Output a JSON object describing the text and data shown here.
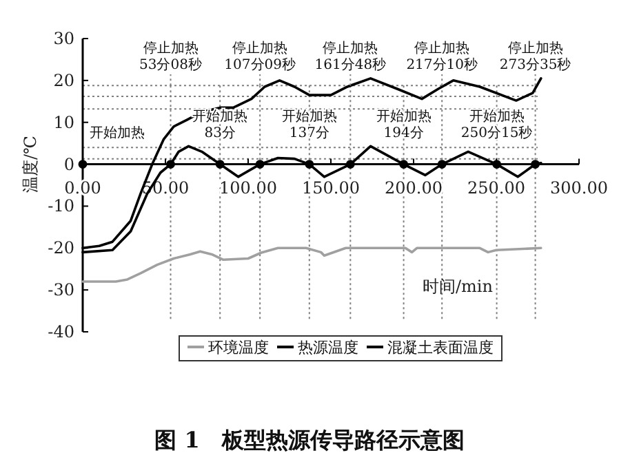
{
  "chart_data": {
    "type": "line",
    "title": "图 1　板型热源传导路径示意图",
    "xlabel": "时间/min",
    "ylabel": "温度/℃",
    "xlim": [
      0,
      300
    ],
    "ylim": [
      -40,
      30
    ],
    "xticks": [
      {
        "value": 0,
        "label": "0.00"
      },
      {
        "value": 50,
        "label": "50.00"
      },
      {
        "value": 100,
        "label": "100.00"
      },
      {
        "value": 150,
        "label": "150.00"
      },
      {
        "value": 200,
        "label": "200.00"
      },
      {
        "value": 250,
        "label": "250.00"
      },
      {
        "value": 300,
        "label": "300.00"
      }
    ],
    "yticks": [
      -40,
      -30,
      -20,
      -10,
      0,
      10,
      20,
      30
    ],
    "legend": "bottom",
    "series": [
      {
        "name": "环境温度",
        "color": "#a0a0a0",
        "x": [
          0,
          20,
          27,
          35,
          45,
          55,
          65,
          71,
          78,
          85,
          100,
          108,
          118,
          135,
          144,
          146,
          159,
          195,
          199,
          202,
          240,
          245,
          250,
          277
        ],
        "values": [
          -28,
          -28,
          -27.5,
          -26,
          -24,
          -22.5,
          -21.5,
          -20.8,
          -21.5,
          -22.8,
          -22.5,
          -21.1,
          -20,
          -20,
          -21,
          -21.8,
          -20,
          -20,
          -21,
          -20,
          -20,
          -21,
          -20.5,
          -20
        ]
      },
      {
        "name": "热源温度",
        "color": "#000000",
        "x": [
          0,
          10,
          18,
          29,
          35,
          42,
          49,
          55,
          63,
          72,
          83,
          91,
          102,
          110,
          119,
          128,
          137,
          150,
          160,
          174,
          190,
          205,
          215,
          224,
          240,
          262,
          272,
          277
        ],
        "values": [
          -20,
          -19.5,
          -18.5,
          -13.5,
          -7,
          0,
          6,
          9,
          10.6,
          12.5,
          13.5,
          13.5,
          15.6,
          18.5,
          20,
          18.5,
          16.5,
          16.5,
          18.5,
          20.5,
          18,
          15.6,
          18,
          20,
          18.5,
          15.2,
          17,
          20.5
        ]
      },
      {
        "name": "混凝土表面温度",
        "color": "#000000",
        "x": [
          0,
          18,
          29,
          39,
          47,
          53.13,
          58,
          64,
          72,
          83,
          94,
          107.15,
          118,
          128,
          137,
          146,
          161.8,
          174,
          194,
          207,
          217.17,
          233,
          250.25,
          263,
          273.58,
          277
        ],
        "values": [
          -21,
          -20.5,
          -16,
          -7,
          -2,
          0,
          3,
          4.3,
          3,
          0,
          -3,
          0,
          1.5,
          1.3,
          0,
          -3,
          0,
          4.3,
          0,
          -2.6,
          0,
          3,
          0,
          -3,
          0,
          0.3
        ]
      },
      {
        "type": "scatter",
        "marker": "circle",
        "color": "#000000",
        "x": [
          0,
          53.13,
          83,
          107.15,
          137,
          161.8,
          194,
          217.17,
          250.25,
          273.58
        ],
        "values": [
          0,
          0,
          0,
          0,
          0,
          0,
          0,
          0,
          0,
          0
        ]
      }
    ],
    "ref_lines": [
      {
        "axis": "y",
        "value": 18.8,
        "line_style": "dotted",
        "color": "#808080"
      },
      {
        "axis": "y",
        "value": 16.2,
        "line_style": "dotted",
        "color": "#808080"
      },
      {
        "axis": "y",
        "value": 13.2,
        "line_style": "dotted",
        "color": "#808080"
      },
      {
        "axis": "y",
        "value": 4,
        "line_style": "dotted",
        "color": "#808080"
      },
      {
        "axis": "y",
        "value": 1.3,
        "line_style": "dotted",
        "color": "#808080"
      },
      {
        "axis": "x",
        "value": 53.13,
        "line_style": "dotted",
        "color": "#808080"
      },
      {
        "axis": "x",
        "value": 83,
        "line_style": "dotted",
        "color": "#808080"
      },
      {
        "axis": "x",
        "value": 107.15,
        "line_style": "dotted",
        "color": "#808080"
      },
      {
        "axis": "x",
        "value": 137,
        "line_style": "dotted",
        "color": "#808080"
      },
      {
        "axis": "x",
        "value": 161.8,
        "line_style": "dotted",
        "color": "#808080"
      },
      {
        "axis": "x",
        "value": 194,
        "line_style": "dotted",
        "color": "#808080"
      },
      {
        "axis": "x",
        "value": 217.17,
        "line_style": "dotted",
        "color": "#808080"
      },
      {
        "axis": "x",
        "value": 250.25,
        "line_style": "dotted",
        "color": "#808080"
      },
      {
        "axis": "x",
        "value": 273.58,
        "line_style": "dotted",
        "color": "#808080"
      }
    ],
    "annotations": [
      {
        "text": "开始加热",
        "x": 0,
        "y": 0
      },
      "停止加热\n53分08秒",
      {
        "text": "开始加热\n83分",
        "x": 83,
        "y": 0
      },
      "停止加热\n107分09秒",
      {
        "text": "开始加热\n137分",
        "x": 137,
        "y": 0
      },
      "停止加热\n161分48秒",
      {
        "text": "开始加热\n194分",
        "x": 194,
        "y": 0
      },
      "停止加热\n217分10秒",
      {
        "text": "开始加热\n250分15秒",
        "x": 250.25,
        "y": 0
      },
      "停止加热\n273分35秒"
    ]
  }
}
